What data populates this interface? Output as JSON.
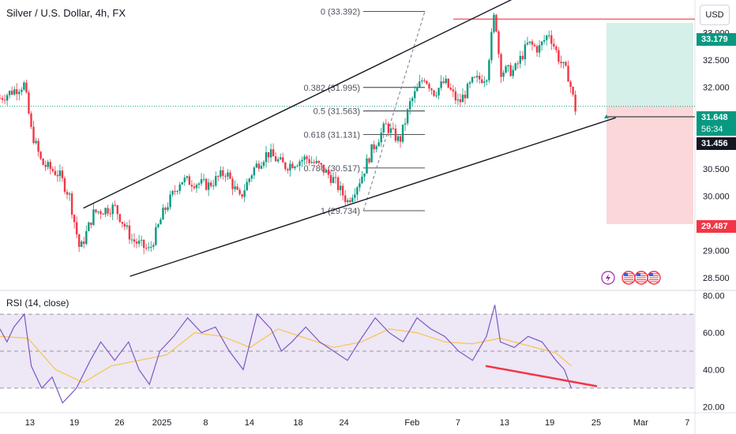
{
  "header": {
    "title": "Silver / U.S. Dollar, 4h, FX",
    "currency": "USD",
    "rsi_title": "RSI (14, close)"
  },
  "colors": {
    "up": "#089981",
    "down": "#f23645",
    "wick": "#131722",
    "channel": "#131722",
    "fib": "#131722",
    "rsi_line": "#7e57c2",
    "rsi_ma": "#f7c548",
    "rsi_band": "#ede7f6",
    "resistance": "#f23645",
    "tp_zone": "#cfeee6",
    "sl_zone": "#fbd3d6",
    "current_price": "#089981"
  },
  "icons": [
    "lightning-icon",
    "us-flag-icon",
    "us-flag-icon",
    "us-flag-icon"
  ],
  "chart_data": [
    {
      "type": "candlestick",
      "title": "Silver / U.S. Dollar, 4h, FX",
      "x_ticks": [
        "13",
        "19",
        "26",
        "2025",
        "8",
        "14",
        "18",
        "24",
        "Feb",
        "7",
        "13",
        "19",
        "25",
        "Mar",
        "7"
      ],
      "y_ticks": [
        "28.500",
        "29.000",
        "29.500",
        "30.000",
        "30.500",
        "31.000",
        "31.500",
        "32.000",
        "32.500",
        "33.000"
      ],
      "ylim": [
        28.3,
        33.6
      ],
      "price_labels": {
        "take_profit": "33.179",
        "current": "31.648",
        "countdown": "56:34",
        "entry": "31.456",
        "stop_loss": "29.487"
      },
      "price_values": {
        "take_profit": 33.179,
        "current": 31.648,
        "entry": 31.456,
        "stop_loss": 29.487,
        "resistance": 33.25
      },
      "fib_levels": [
        {
          "label": "0 (33.392)",
          "value": 33.392
        },
        {
          "label": "0.382 (31.995)",
          "value": 31.995
        },
        {
          "label": "0.5 (31.563)",
          "value": 31.563
        },
        {
          "label": "0.618 (31.131)",
          "value": 31.131
        },
        {
          "label": "0.786 (30.517)",
          "value": 30.517
        },
        {
          "label": "1 (29.734)",
          "value": 29.734
        }
      ],
      "channel": {
        "upper": [
          [
            0.12,
            29.78
          ],
          [
            0.772,
            33.83
          ]
        ],
        "lower": [
          [
            0.187,
            28.53
          ],
          [
            0.886,
            31.44
          ]
        ]
      },
      "anchors": [
        [
          0.0,
          31.8
        ],
        [
          0.035,
          32.05
        ],
        [
          0.045,
          31.2
        ],
        [
          0.06,
          30.6
        ],
        [
          0.085,
          30.4
        ],
        [
          0.1,
          30.0
        ],
        [
          0.115,
          29.0
        ],
        [
          0.135,
          29.7
        ],
        [
          0.165,
          29.8
        ],
        [
          0.19,
          29.2
        ],
        [
          0.215,
          29.0
        ],
        [
          0.235,
          29.7
        ],
        [
          0.26,
          30.3
        ],
        [
          0.3,
          30.2
        ],
        [
          0.325,
          30.45
        ],
        [
          0.345,
          29.95
        ],
        [
          0.365,
          30.5
        ],
        [
          0.385,
          30.8
        ],
        [
          0.41,
          30.55
        ],
        [
          0.44,
          30.7
        ],
        [
          0.46,
          30.55
        ],
        [
          0.48,
          30.3
        ],
        [
          0.5,
          29.9
        ],
        [
          0.52,
          30.35
        ],
        [
          0.535,
          30.85
        ],
        [
          0.555,
          31.3
        ],
        [
          0.575,
          31.0
        ],
        [
          0.59,
          31.7
        ],
        [
          0.61,
          32.2
        ],
        [
          0.625,
          31.9
        ],
        [
          0.64,
          32.1
        ],
        [
          0.66,
          31.7
        ],
        [
          0.68,
          32.1
        ],
        [
          0.7,
          32.2
        ],
        [
          0.712,
          33.4
        ],
        [
          0.72,
          32.3
        ],
        [
          0.74,
          32.3
        ],
        [
          0.76,
          32.8
        ],
        [
          0.775,
          32.7
        ],
        [
          0.79,
          33.0
        ],
        [
          0.805,
          32.5
        ],
        [
          0.818,
          32.2
        ],
        [
          0.828,
          31.6
        ]
      ]
    },
    {
      "type": "line",
      "title": "RSI (14, close)",
      "y_ticks": [
        "20.00",
        "40.00",
        "60.00",
        "80.00"
      ],
      "ylim": [
        18,
        82
      ],
      "bands": [
        30,
        50,
        70
      ],
      "series": [
        {
          "values": [
            [
              0.0,
              62
            ],
            [
              0.01,
              55
            ],
            [
              0.02,
              63
            ],
            [
              0.035,
              70
            ],
            [
              0.045,
              42
            ],
            [
              0.06,
              30
            ],
            [
              0.075,
              36
            ],
            [
              0.09,
              22
            ],
            [
              0.11,
              30
            ],
            [
              0.13,
              45
            ],
            [
              0.145,
              55
            ],
            [
              0.165,
              45
            ],
            [
              0.185,
              55
            ],
            [
              0.2,
              40
            ],
            [
              0.215,
              32
            ],
            [
              0.23,
              50
            ],
            [
              0.25,
              58
            ],
            [
              0.27,
              68
            ],
            [
              0.29,
              60
            ],
            [
              0.31,
              63
            ],
            [
              0.33,
              50
            ],
            [
              0.35,
              40
            ],
            [
              0.37,
              70
            ],
            [
              0.39,
              62
            ],
            [
              0.405,
              50
            ],
            [
              0.42,
              55
            ],
            [
              0.44,
              63
            ],
            [
              0.46,
              55
            ],
            [
              0.48,
              50
            ],
            [
              0.5,
              45
            ],
            [
              0.52,
              57
            ],
            [
              0.54,
              68
            ],
            [
              0.56,
              60
            ],
            [
              0.58,
              55
            ],
            [
              0.6,
              68
            ],
            [
              0.62,
              62
            ],
            [
              0.64,
              58
            ],
            [
              0.66,
              50
            ],
            [
              0.68,
              45
            ],
            [
              0.7,
              58
            ],
            [
              0.712,
              75
            ],
            [
              0.72,
              55
            ],
            [
              0.74,
              52
            ],
            [
              0.76,
              58
            ],
            [
              0.78,
              55
            ],
            [
              0.8,
              45
            ],
            [
              0.812,
              40
            ],
            [
              0.822,
              30
            ]
          ]
        },
        {
          "values": [
            [
              0.0,
              58
            ],
            [
              0.04,
              57
            ],
            [
              0.08,
              40
            ],
            [
              0.12,
              33
            ],
            [
              0.16,
              42
            ],
            [
              0.2,
              45
            ],
            [
              0.24,
              48
            ],
            [
              0.28,
              60
            ],
            [
              0.32,
              58
            ],
            [
              0.36,
              52
            ],
            [
              0.4,
              62
            ],
            [
              0.44,
              57
            ],
            [
              0.48,
              52
            ],
            [
              0.52,
              55
            ],
            [
              0.56,
              62
            ],
            [
              0.6,
              60
            ],
            [
              0.64,
              55
            ],
            [
              0.68,
              54
            ],
            [
              0.72,
              57
            ],
            [
              0.76,
              53
            ],
            [
              0.8,
              49
            ],
            [
              0.822,
              42
            ]
          ]
        }
      ]
    }
  ]
}
